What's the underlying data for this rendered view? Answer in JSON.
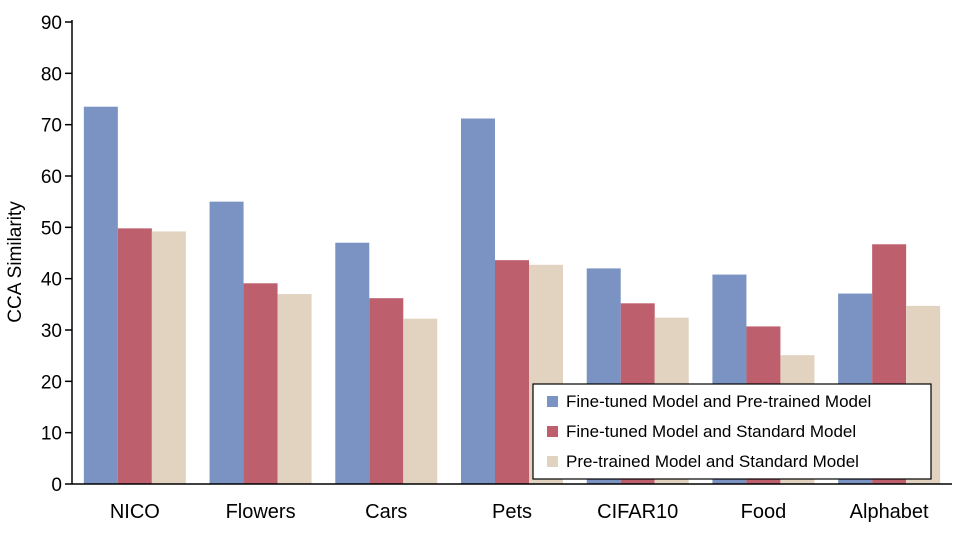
{
  "chart_data": {
    "type": "bar",
    "title": "",
    "xlabel": "",
    "ylabel": "CCA  Similarity",
    "ylim": [
      0,
      90
    ],
    "yticks": [
      0,
      10,
      20,
      30,
      40,
      50,
      60,
      70,
      80,
      90
    ],
    "categories": [
      "NICO",
      "Flowers",
      "Cars",
      "Pets",
      "CIFAR10",
      "Food",
      "Alphabet"
    ],
    "series": [
      {
        "name": "Fine-tuned Model and Pre-trained Model",
        "color": "#7a93c2",
        "values": [
          73.5,
          55.0,
          47.0,
          71.2,
          42.0,
          40.8,
          37.1
        ]
      },
      {
        "name": "Fine-tuned Model and Standard Model",
        "color": "#bd5f6d",
        "values": [
          49.8,
          39.1,
          36.2,
          43.6,
          35.2,
          30.7,
          46.7
        ]
      },
      {
        "name": "Pre-trained Model and Standard Model",
        "color": "#e2d3c1",
        "values": [
          49.2,
          37.0,
          32.2,
          42.7,
          32.4,
          25.1,
          34.7
        ]
      }
    ],
    "grid": false,
    "legend_position": "bottom-right"
  }
}
